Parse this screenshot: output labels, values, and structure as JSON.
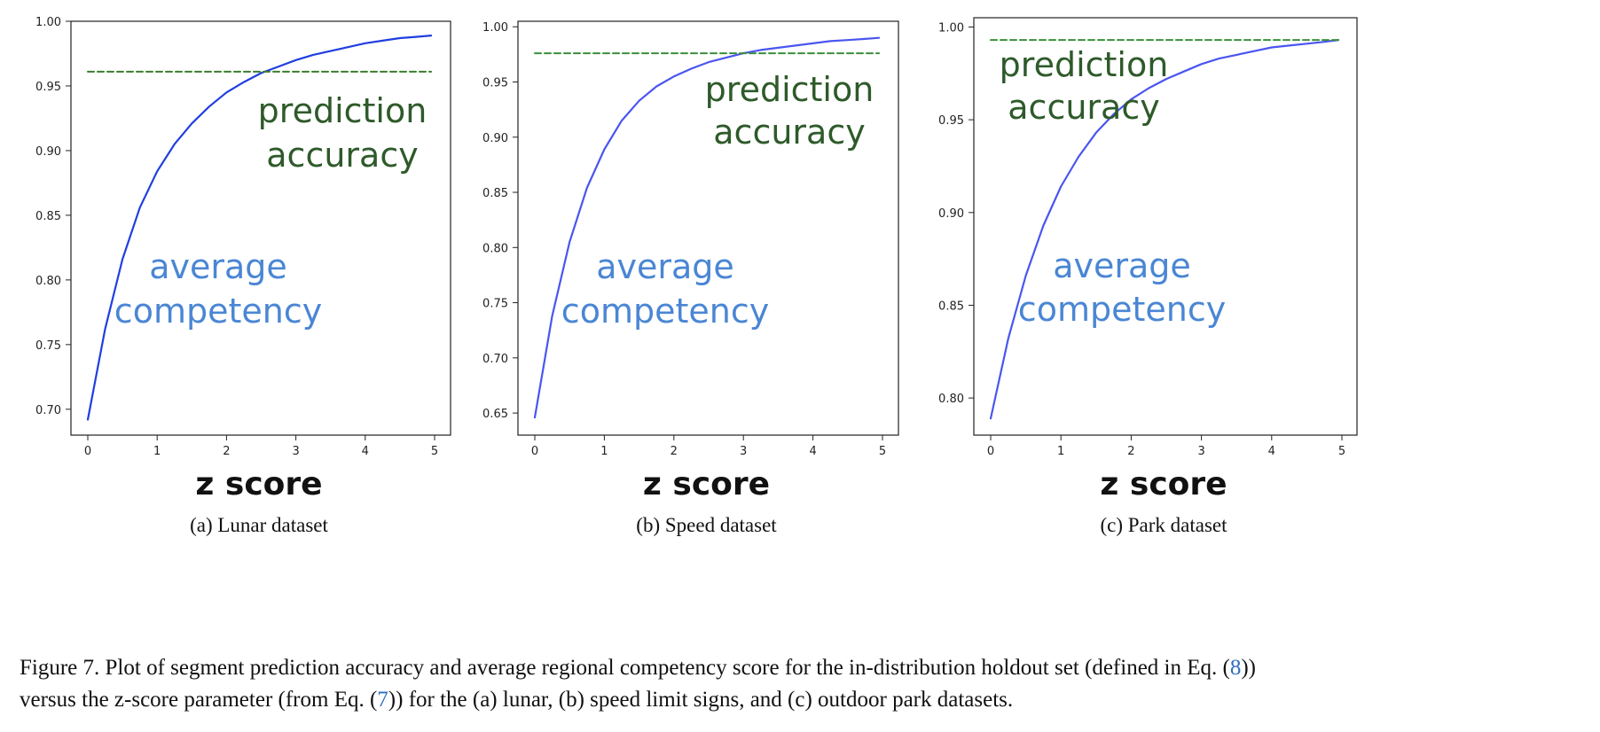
{
  "chart_data": [
    {
      "type": "line",
      "x": [
        0,
        0.25,
        0.5,
        0.75,
        1,
        1.25,
        1.5,
        1.75,
        2,
        2.25,
        2.5,
        2.75,
        3,
        3.25,
        3.5,
        3.75,
        4,
        4.25,
        4.5,
        4.75,
        4.95
      ],
      "xlim": [
        0,
        5
      ],
      "xticks": [
        "0",
        "1",
        "2",
        "3",
        "4",
        "5"
      ],
      "ylim": [
        0.68,
        1.0
      ],
      "yticks": [
        "0.70",
        "0.75",
        "0.80",
        "0.85",
        "0.90",
        "0.95",
        "1.00"
      ],
      "xlabel": "z score",
      "subcaption": "(a) Lunar dataset",
      "series": [
        {
          "name": "average competency",
          "color": "#1f3fe0",
          "style": "solid",
          "values": [
            0.692,
            0.762,
            0.816,
            0.856,
            0.884,
            0.905,
            0.921,
            0.934,
            0.945,
            0.953,
            0.96,
            0.965,
            0.97,
            0.974,
            0.977,
            0.98,
            0.983,
            0.985,
            0.987,
            0.988,
            0.989
          ]
        },
        {
          "name": "prediction accuracy",
          "color": "#3a7d2c",
          "style": "dashed",
          "values": [
            0.961,
            0.961,
            0.961,
            0.961,
            0.961,
            0.961,
            0.961,
            0.961,
            0.961,
            0.961,
            0.961,
            0.961,
            0.961,
            0.961,
            0.961,
            0.961,
            0.961,
            0.961,
            0.961,
            0.961,
            0.961
          ]
        }
      ]
    },
    {
      "type": "line",
      "x": [
        0,
        0.25,
        0.5,
        0.75,
        1,
        1.25,
        1.5,
        1.75,
        2,
        2.25,
        2.5,
        2.75,
        3,
        3.25,
        3.5,
        3.75,
        4,
        4.25,
        4.5,
        4.75,
        4.95
      ],
      "xlim": [
        0,
        5
      ],
      "xticks": [
        "0",
        "1",
        "2",
        "3",
        "4",
        "5"
      ],
      "ylim": [
        0.63,
        1.005
      ],
      "yticks": [
        "0.65",
        "0.70",
        "0.75",
        "0.80",
        "0.85",
        "0.90",
        "0.95",
        "1.00"
      ],
      "xlabel": "z score",
      "subcaption": "(b) Speed dataset",
      "series": [
        {
          "name": "average competency",
          "color": "#4a55f0",
          "style": "solid",
          "values": [
            0.646,
            0.738,
            0.805,
            0.854,
            0.889,
            0.915,
            0.933,
            0.946,
            0.955,
            0.962,
            0.968,
            0.972,
            0.976,
            0.979,
            0.981,
            0.983,
            0.985,
            0.987,
            0.988,
            0.989,
            0.99
          ]
        },
        {
          "name": "prediction accuracy",
          "color": "#3a8f3a",
          "style": "dashed",
          "values": [
            0.976,
            0.976,
            0.976,
            0.976,
            0.976,
            0.976,
            0.976,
            0.976,
            0.976,
            0.976,
            0.976,
            0.976,
            0.976,
            0.976,
            0.976,
            0.976,
            0.976,
            0.976,
            0.976,
            0.976,
            0.976
          ]
        }
      ]
    },
    {
      "type": "line",
      "x": [
        0,
        0.25,
        0.5,
        0.75,
        1,
        1.25,
        1.5,
        1.75,
        2,
        2.25,
        2.5,
        2.75,
        3,
        3.25,
        3.5,
        3.75,
        4,
        4.25,
        4.5,
        4.75,
        4.95
      ],
      "xlim": [
        0,
        5
      ],
      "xticks": [
        "0",
        "1",
        "2",
        "3",
        "4",
        "5"
      ],
      "ylim": [
        0.78,
        1.005
      ],
      "yticks": [
        "0.80",
        "0.85",
        "0.90",
        "0.95",
        "1.00"
      ],
      "xlabel": "z score",
      "subcaption": "(c) Park dataset",
      "series": [
        {
          "name": "average competency",
          "color": "#4a55f0",
          "style": "solid",
          "values": [
            0.789,
            0.832,
            0.866,
            0.893,
            0.914,
            0.93,
            0.943,
            0.953,
            0.961,
            0.967,
            0.972,
            0.976,
            0.98,
            0.983,
            0.985,
            0.987,
            0.989,
            0.99,
            0.991,
            0.992,
            0.993
          ]
        },
        {
          "name": "prediction accuracy",
          "color": "#3a8f3a",
          "style": "dashed",
          "values": [
            0.993,
            0.993,
            0.993,
            0.993,
            0.993,
            0.993,
            0.993,
            0.993,
            0.993,
            0.993,
            0.993,
            0.993,
            0.993,
            0.993,
            0.993,
            0.993,
            0.993,
            0.993,
            0.993,
            0.993,
            0.993
          ]
        }
      ]
    }
  ],
  "annotations": {
    "prediction_line1": "prediction",
    "prediction_line2": "accuracy",
    "competency_line1": "average",
    "competency_line2": "competency",
    "prediction_color": "#2e5a2a",
    "competency_color": "#4a86d4"
  },
  "caption": {
    "part1": "Figure 7. Plot of segment prediction accuracy and average regional competency score for the in-distribution holdout set (defined in Eq. (",
    "ref1": "8",
    "part2": "))",
    "part3": "versus the z-score parameter (from Eq. (",
    "ref2": "7",
    "part4": ")) for the (a) lunar, (b) speed limit signs, and (c) outdoor park datasets."
  }
}
